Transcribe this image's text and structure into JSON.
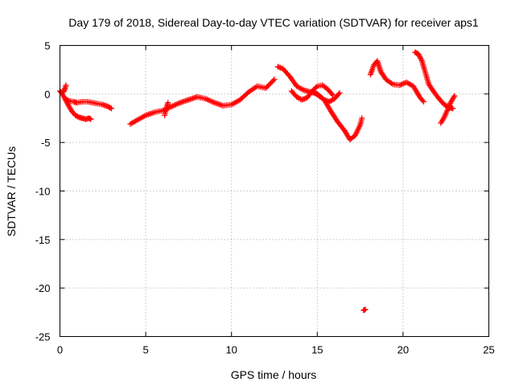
{
  "chart_data": {
    "type": "scatter",
    "title": "Day 179 of 2018, Sidereal Day-to-day VTEC variation (SDTVAR) for receiver aps1",
    "xlabel": "GPS time / hours",
    "ylabel": "SDTVAR / TECUs",
    "xlim": [
      0,
      25
    ],
    "ylim": [
      -25,
      5
    ],
    "xticks": [
      "0",
      "5",
      "10",
      "15",
      "20",
      "25"
    ],
    "yticks": [
      "5",
      "0",
      "-5",
      "-10",
      "-15",
      "-20",
      "-25"
    ],
    "grid": true,
    "marker": "plus",
    "color": "#ff0000",
    "series": [
      {
        "name": "s1",
        "x": [
          0.0,
          0.1,
          0.2,
          0.3,
          0.5,
          0.8,
          1.0,
          1.3,
          1.6,
          1.9,
          2.2,
          2.5,
          2.8,
          3.0
        ],
        "y": [
          0.3,
          0.1,
          -0.2,
          -0.5,
          -0.7,
          -0.8,
          -0.9,
          -0.8,
          -0.8,
          -0.9,
          -1.0,
          -1.1,
          -1.3,
          -1.5
        ]
      },
      {
        "name": "s2",
        "x": [
          0.3,
          0.5,
          0.7,
          0.9,
          1.1,
          1.3,
          1.5,
          1.7,
          1.8
        ],
        "y": [
          -0.5,
          -1.2,
          -1.8,
          -2.2,
          -2.4,
          -2.5,
          -2.6,
          -2.5,
          -2.6
        ]
      },
      {
        "name": "s3",
        "x": [
          0.2,
          0.3,
          0.35
        ],
        "y": [
          0.2,
          0.6,
          0.9
        ]
      },
      {
        "name": "s4",
        "x": [
          4.1,
          4.5,
          5.0,
          5.5,
          6.0,
          6.5,
          7.0,
          7.5,
          8.0,
          8.5,
          9.0,
          9.5,
          10.0,
          10.5,
          11.0,
          11.5,
          12.0,
          12.5
        ],
        "y": [
          -3.1,
          -2.7,
          -2.2,
          -1.9,
          -1.7,
          -1.3,
          -0.9,
          -0.6,
          -0.3,
          -0.5,
          -0.9,
          -1.2,
          -1.1,
          -0.6,
          0.2,
          0.8,
          0.6,
          1.5
        ]
      },
      {
        "name": "s5",
        "x": [
          6.1,
          6.2,
          6.3
        ],
        "y": [
          -2.2,
          -1.5,
          -0.9
        ]
      },
      {
        "name": "s6",
        "x": [
          12.7,
          13.0,
          13.4,
          13.8,
          14.2,
          14.6,
          15.0,
          15.4,
          15.8,
          16.2,
          16.6,
          16.9,
          17.2,
          17.5,
          17.6
        ],
        "y": [
          2.8,
          2.6,
          1.8,
          0.8,
          0.4,
          0.2,
          0.0,
          -0.6,
          -1.8,
          -2.9,
          -3.8,
          -4.7,
          -4.3,
          -3.2,
          -2.5
        ]
      },
      {
        "name": "s7",
        "x": [
          13.5,
          13.8,
          14.1,
          14.4,
          14.7,
          15.0,
          15.3,
          15.6,
          15.9
        ],
        "y": [
          0.3,
          -0.3,
          -0.6,
          -0.4,
          0.3,
          0.8,
          0.9,
          0.5,
          -0.1
        ]
      },
      {
        "name": "s8",
        "x": [
          14.8,
          15.1,
          15.4,
          15.7,
          16.0,
          16.3
        ],
        "y": [
          0.2,
          -0.2,
          -0.6,
          -0.8,
          -0.5,
          0.1
        ]
      },
      {
        "name": "s9",
        "x": [
          17.7,
          17.8
        ],
        "y": [
          -22.3,
          -22.2
        ]
      },
      {
        "name": "s10",
        "x": [
          18.1,
          18.3,
          18.5,
          18.7,
          19.0,
          19.4,
          19.8,
          20.2,
          20.6,
          21.0,
          21.2
        ],
        "y": [
          2.0,
          3.0,
          3.4,
          2.3,
          1.5,
          1.0,
          0.9,
          1.2,
          0.8,
          -0.4,
          -0.8
        ]
      },
      {
        "name": "s11",
        "x": [
          20.7,
          20.9,
          21.1,
          21.3,
          21.5,
          21.8,
          22.1,
          22.4,
          22.7,
          22.9
        ],
        "y": [
          4.3,
          4.1,
          3.4,
          2.2,
          1.0,
          0.2,
          -0.5,
          -1.1,
          -1.4,
          -1.5
        ]
      },
      {
        "name": "s12",
        "x": [
          22.2,
          22.4,
          22.6,
          22.8,
          23.0
        ],
        "y": [
          -3.0,
          -2.4,
          -1.6,
          -0.8,
          -0.2
        ]
      }
    ]
  }
}
